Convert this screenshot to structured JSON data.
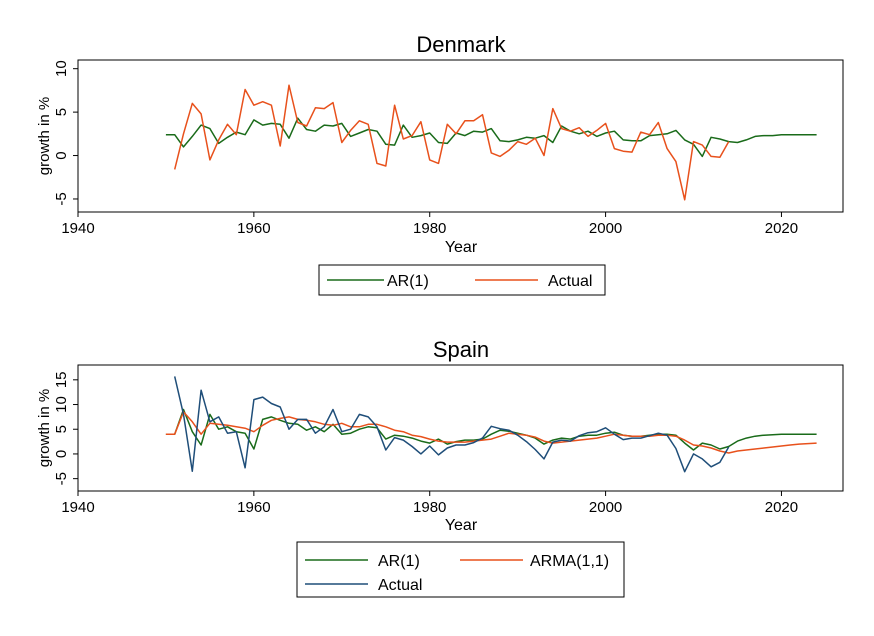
{
  "chart_data": [
    {
      "type": "line",
      "title": "Denmark",
      "xlabel": "Year",
      "ylabel": "growth in %",
      "xlim": [
        1940,
        2027
      ],
      "ylim": [
        -6.5,
        11
      ],
      "x_ticks": [
        "1940",
        "1960",
        "1980",
        "2000",
        "2020"
      ],
      "y_ticks": [
        "-5",
        "0",
        "5",
        "10"
      ],
      "grid": false,
      "legend": "bottom",
      "series": [
        {
          "name": "AR(1)",
          "color": "#1a6b1a",
          "x": [
            1950,
            1951,
            1952,
            1953,
            1954,
            1955,
            1956,
            1957,
            1958,
            1959,
            1960,
            1961,
            1962,
            1963,
            1964,
            1965,
            1966,
            1967,
            1968,
            1969,
            1970,
            1971,
            1972,
            1973,
            1974,
            1975,
            1976,
            1977,
            1978,
            1979,
            1980,
            1981,
            1982,
            1983,
            1984,
            1985,
            1986,
            1987,
            1988,
            1989,
            1990,
            1991,
            1992,
            1993,
            1994,
            1995,
            1996,
            1997,
            1998,
            1999,
            2000,
            2001,
            2002,
            2003,
            2004,
            2005,
            2006,
            2007,
            2008,
            2009,
            2010,
            2011,
            2012,
            2013,
            2014,
            2015,
            2016,
            2017,
            2018,
            2019,
            2020,
            2021,
            2022,
            2023,
            2024
          ],
          "values": [
            2.4,
            2.4,
            1.0,
            2.2,
            3.5,
            3.1,
            1.4,
            2.1,
            2.7,
            2.4,
            4.1,
            3.5,
            3.7,
            3.6,
            2.0,
            4.3,
            3.0,
            2.8,
            3.5,
            3.4,
            3.7,
            2.2,
            2.6,
            3.0,
            2.8,
            1.3,
            1.2,
            3.5,
            2.1,
            2.3,
            2.6,
            1.5,
            1.4,
            2.6,
            2.3,
            2.8,
            2.7,
            3.1,
            1.7,
            1.6,
            1.8,
            2.1,
            2.0,
            2.3,
            1.5,
            3.4,
            2.8,
            2.5,
            2.8,
            2.2,
            2.6,
            2.8,
            1.8,
            1.7,
            1.7,
            2.3,
            2.4,
            2.5,
            2.9,
            1.8,
            1.3,
            -0.1,
            2.1,
            1.9,
            1.6,
            1.5,
            1.8,
            2.2,
            2.3,
            2.3,
            2.4,
            2.4,
            2.4,
            2.4,
            2.4
          ]
        },
        {
          "name": "Actual",
          "color": "#e8511c",
          "x": [
            1951,
            1952,
            1953,
            1954,
            1955,
            1956,
            1957,
            1958,
            1959,
            1960,
            1961,
            1962,
            1963,
            1964,
            1965,
            1966,
            1967,
            1968,
            1969,
            1970,
            1971,
            1972,
            1973,
            1974,
            1975,
            1976,
            1977,
            1978,
            1979,
            1980,
            1981,
            1982,
            1983,
            1984,
            1985,
            1986,
            1987,
            1988,
            1989,
            1990,
            1991,
            1992,
            1993,
            1994,
            1995,
            1996,
            1997,
            1998,
            1999,
            2000,
            2001,
            2002,
            2003,
            2004,
            2005,
            2006,
            2007,
            2008,
            2009,
            2010,
            2011,
            2012,
            2013,
            2014
          ],
          "values": [
            -1.6,
            2.5,
            6.0,
            4.8,
            -0.5,
            1.8,
            3.6,
            2.4,
            7.6,
            5.8,
            6.2,
            5.8,
            1.1,
            8.1,
            3.8,
            3.4,
            5.5,
            5.4,
            6.1,
            1.5,
            2.9,
            4.0,
            3.6,
            -0.9,
            -1.2,
            5.8,
            1.9,
            2.3,
            3.9,
            -0.5,
            -0.9,
            3.6,
            2.5,
            4.0,
            4.0,
            4.7,
            0.3,
            -0.1,
            0.6,
            1.6,
            1.3,
            2.0,
            0.0,
            5.4,
            3.1,
            2.8,
            3.2,
            2.2,
            2.9,
            3.7,
            0.8,
            0.5,
            0.4,
            2.7,
            2.4,
            3.8,
            0.8,
            -0.7,
            -5.1,
            1.6,
            1.2,
            -0.1,
            -0.2,
            1.6
          ]
        }
      ]
    },
    {
      "type": "line",
      "title": "Spain",
      "xlabel": "Year",
      "ylabel": "growth in %",
      "xlim": [
        1940,
        2027
      ],
      "ylim": [
        -7.5,
        18
      ],
      "x_ticks": [
        "1940",
        "1960",
        "1980",
        "2000",
        "2020"
      ],
      "y_ticks": [
        "-5",
        "0",
        "5",
        "10",
        "15"
      ],
      "grid": false,
      "legend": "bottom",
      "series": [
        {
          "name": "AR(1)",
          "color": "#1a6b1a",
          "x": [
            1950,
            1951,
            1952,
            1953,
            1954,
            1955,
            1956,
            1957,
            1958,
            1959,
            1960,
            1961,
            1962,
            1963,
            1964,
            1965,
            1966,
            1967,
            1968,
            1969,
            1970,
            1971,
            1972,
            1973,
            1974,
            1975,
            1976,
            1977,
            1978,
            1979,
            1980,
            1981,
            1982,
            1983,
            1984,
            1985,
            1986,
            1987,
            1988,
            1989,
            1990,
            1991,
            1992,
            1993,
            1994,
            1995,
            1996,
            1997,
            1998,
            1999,
            2000,
            2001,
            2002,
            2003,
            2004,
            2005,
            2006,
            2007,
            2008,
            2009,
            2010,
            2011,
            2012,
            2013,
            2014,
            2015,
            2016,
            2017,
            2018,
            2019,
            2020,
            2021,
            2022,
            2023,
            2024
          ],
          "values": [
            4.0,
            4.0,
            9.0,
            4.5,
            1.8,
            8.0,
            5.0,
            5.5,
            4.5,
            4.2,
            1.0,
            7.0,
            7.5,
            6.8,
            6.2,
            6.0,
            4.8,
            5.5,
            4.5,
            6.0,
            4.0,
            4.2,
            5.0,
            5.5,
            5.3,
            3.0,
            3.8,
            3.6,
            3.2,
            2.6,
            2.2,
            3.0,
            2.0,
            2.5,
            2.8,
            2.8,
            3.0,
            4.0,
            4.8,
            4.6,
            4.2,
            3.8,
            3.2,
            2.0,
            2.8,
            3.2,
            3.0,
            3.6,
            3.8,
            3.8,
            4.2,
            4.4,
            3.8,
            3.6,
            3.6,
            3.8,
            4.0,
            4.0,
            3.8,
            2.2,
            0.8,
            2.2,
            1.8,
            1.0,
            1.5,
            2.6,
            3.2,
            3.6,
            3.8,
            3.9,
            4.0,
            4.0,
            4.0,
            4.0,
            4.0
          ]
        },
        {
          "name": "ARMA(1,1)",
          "color": "#e8511c",
          "x": [
            1950,
            1951,
            1952,
            1953,
            1954,
            1955,
            1956,
            1957,
            1958,
            1959,
            1960,
            1961,
            1962,
            1963,
            1964,
            1965,
            1966,
            1967,
            1968,
            1969,
            1970,
            1971,
            1972,
            1973,
            1974,
            1975,
            1976,
            1977,
            1978,
            1979,
            1980,
            1981,
            1982,
            1983,
            1984,
            1985,
            1986,
            1987,
            1988,
            1989,
            1990,
            1991,
            1992,
            1993,
            1994,
            1995,
            1996,
            1997,
            1998,
            1999,
            2000,
            2001,
            2002,
            2003,
            2004,
            2005,
            2006,
            2007,
            2008,
            2009,
            2010,
            2011,
            2012,
            2013,
            2014,
            2015,
            2016,
            2017,
            2018,
            2019,
            2020,
            2021,
            2022,
            2023,
            2024
          ],
          "values": [
            4.0,
            4.0,
            8.5,
            6.5,
            4.0,
            6.2,
            6.0,
            5.8,
            5.5,
            5.2,
            4.5,
            5.8,
            6.8,
            7.2,
            7.5,
            7.0,
            6.8,
            6.5,
            6.0,
            5.8,
            6.2,
            5.5,
            5.5,
            6.0,
            6.0,
            5.5,
            4.8,
            4.5,
            3.8,
            3.5,
            3.0,
            2.6,
            2.4,
            2.4,
            2.4,
            2.6,
            2.8,
            3.0,
            3.6,
            4.2,
            4.0,
            3.8,
            3.4,
            2.6,
            2.2,
            2.4,
            2.6,
            2.8,
            3.0,
            3.2,
            3.6,
            4.0,
            3.8,
            3.6,
            3.6,
            3.6,
            3.8,
            3.8,
            3.6,
            2.8,
            1.8,
            1.6,
            1.2,
            0.6,
            0.2,
            0.6,
            0.8,
            1.0,
            1.2,
            1.4,
            1.6,
            1.8,
            2.0,
            2.1,
            2.2
          ]
        },
        {
          "name": "Actual",
          "color": "#1f4e79",
          "x": [
            1951,
            1952,
            1953,
            1954,
            1955,
            1956,
            1957,
            1958,
            1959,
            1960,
            1961,
            1962,
            1963,
            1964,
            1965,
            1966,
            1967,
            1968,
            1969,
            1970,
            1971,
            1972,
            1973,
            1974,
            1975,
            1976,
            1977,
            1978,
            1979,
            1980,
            1981,
            1982,
            1983,
            1984,
            1985,
            1986,
            1987,
            1988,
            1989,
            1990,
            1991,
            1992,
            1993,
            1994,
            1995,
            1996,
            1997,
            1998,
            1999,
            2000,
            2001,
            2002,
            2003,
            2004,
            2005,
            2006,
            2007,
            2008,
            2009,
            2010,
            2011,
            2012,
            2013,
            2014
          ],
          "values": [
            15.7,
            8.0,
            -3.5,
            12.9,
            6.5,
            7.5,
            4.2,
            4.5,
            -2.8,
            11.0,
            11.5,
            10.2,
            9.5,
            5.0,
            7.0,
            7.0,
            4.2,
            5.5,
            9.0,
            4.5,
            5.0,
            8.0,
            7.5,
            5.5,
            0.8,
            3.3,
            2.8,
            1.5,
            0.0,
            1.6,
            -0.2,
            1.2,
            1.8,
            1.8,
            2.3,
            3.2,
            5.6,
            5.1,
            4.8,
            3.8,
            2.5,
            0.9,
            -1.0,
            2.4,
            2.8,
            2.6,
            3.7,
            4.3,
            4.5,
            5.3,
            4.0,
            2.9,
            3.2,
            3.2,
            3.7,
            4.2,
            3.8,
            1.1,
            -3.6,
            0.0,
            -1.0,
            -2.6,
            -1.7,
            1.4
          ]
        }
      ]
    }
  ]
}
